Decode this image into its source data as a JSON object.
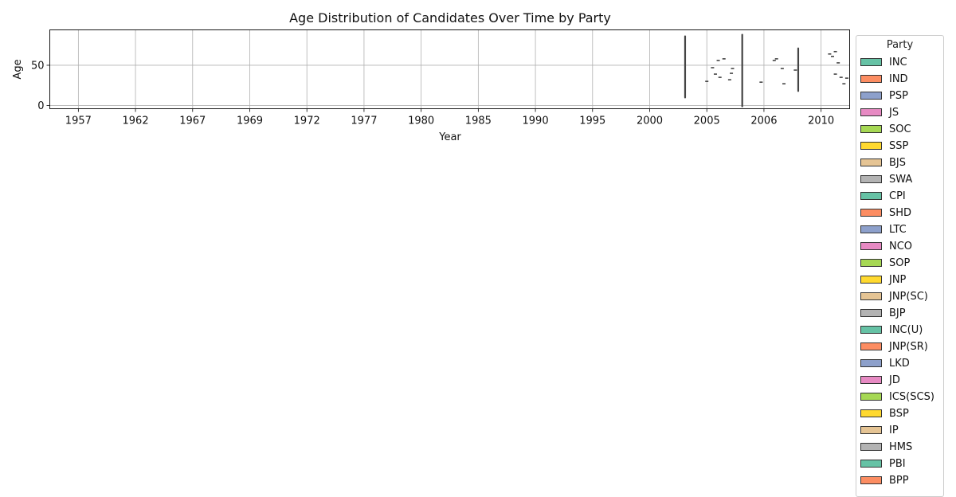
{
  "chart_data": {
    "type": "violin",
    "title": "Age Distribution of Candidates Over Time by Party",
    "xlabel": "Year",
    "ylabel": "Age",
    "categories": [
      "1957",
      "1962",
      "1967",
      "1969",
      "1972",
      "1977",
      "1980",
      "1985",
      "1990",
      "1995",
      "2000",
      "2005",
      "2006",
      "2010"
    ],
    "y_ticks": [
      0,
      50
    ],
    "ylim": [
      -4,
      94
    ],
    "grid": true,
    "legend": {
      "title": "Party",
      "placement": "outside-right",
      "entries": [
        "INC",
        "IND",
        "PSP",
        "JS",
        "SOC",
        "SSP",
        "BJS",
        "SWA",
        "CPI",
        "SHD",
        "LTC",
        "NCO",
        "SOP",
        "JNP",
        "JNP(SC)",
        "BJP",
        "INC(U)",
        "JNP(SR)",
        "LKD",
        "JD",
        "ICS(SCS)",
        "BSP",
        "IP",
        "HMS",
        "PBI",
        "BPP"
      ]
    },
    "palette": [
      "#66c2a5",
      "#fc8d62",
      "#8da0cb",
      "#e78ac3",
      "#a6d854",
      "#ffd92f",
      "#e5c494",
      "#b3b3b3"
    ],
    "series": [
      {
        "category": "2000",
        "offset": 0.62,
        "min": 10,
        "max": 86
      },
      {
        "category": "2005",
        "offset": 0.0,
        "min": 30,
        "max": 30
      },
      {
        "category": "2005",
        "offset": 0.1,
        "min": 47,
        "max": 47
      },
      {
        "category": "2005",
        "offset": 0.15,
        "min": 39,
        "max": 39
      },
      {
        "category": "2005",
        "offset": 0.2,
        "min": 56,
        "max": 56
      },
      {
        "category": "2005",
        "offset": 0.23,
        "min": 35,
        "max": 35
      },
      {
        "category": "2005",
        "offset": 0.3,
        "min": 58,
        "max": 58
      },
      {
        "category": "2005",
        "offset": 0.4,
        "min": 32,
        "max": 32
      },
      {
        "category": "2005",
        "offset": 0.43,
        "min": 40,
        "max": 40
      },
      {
        "category": "2005",
        "offset": 0.45,
        "min": 46,
        "max": 46
      },
      {
        "category": "2005",
        "offset": 0.62,
        "min": -1,
        "max": 88
      },
      {
        "category": "2006",
        "offset": -0.05,
        "min": 29,
        "max": 29
      },
      {
        "category": "2006",
        "offset": 0.18,
        "min": 56,
        "max": 56
      },
      {
        "category": "2006",
        "offset": 0.22,
        "min": 58,
        "max": 58
      },
      {
        "category": "2006",
        "offset": 0.32,
        "min": 46,
        "max": 46
      },
      {
        "category": "2006",
        "offset": 0.35,
        "min": 27,
        "max": 27
      },
      {
        "category": "2006",
        "offset": 0.55,
        "min": 44,
        "max": 44
      },
      {
        "category": "2006",
        "offset": 0.6,
        "min": 18,
        "max": 71
      },
      {
        "category": "2010",
        "offset": 0.15,
        "min": 64,
        "max": 64
      },
      {
        "category": "2010",
        "offset": 0.2,
        "min": 61,
        "max": 61
      },
      {
        "category": "2010",
        "offset": 0.25,
        "min": 39,
        "max": 39
      },
      {
        "category": "2010",
        "offset": 0.25,
        "min": 67,
        "max": 67
      },
      {
        "category": "2010",
        "offset": 0.3,
        "min": 53,
        "max": 53
      },
      {
        "category": "2010",
        "offset": 0.35,
        "min": 35,
        "max": 35
      },
      {
        "category": "2010",
        "offset": 0.4,
        "min": 27,
        "max": 27
      },
      {
        "category": "2010",
        "offset": 0.45,
        "min": 34,
        "max": 34
      }
    ]
  }
}
